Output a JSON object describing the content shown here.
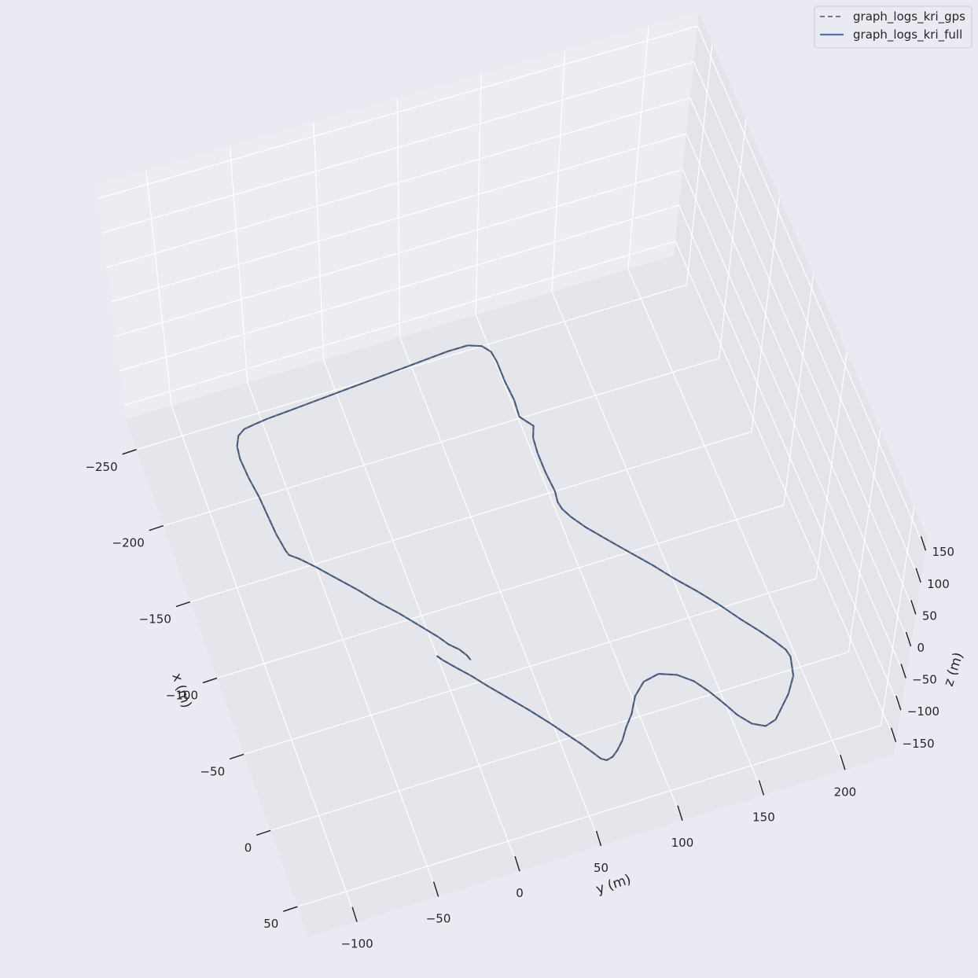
{
  "chart_data": {
    "type": "line",
    "projection": "3d",
    "grid": true,
    "legend_position": "top-right",
    "xlabel": "x (m)",
    "ylabel": "y (m)",
    "zlabel": "z (m)",
    "x_ticks": [
      "−250",
      "−200",
      "−150",
      "−100",
      "−50",
      "0",
      "50"
    ],
    "y_ticks": [
      "−100",
      "−50",
      "0",
      "50",
      "100",
      "150",
      "200"
    ],
    "z_ticks": [
      "−150",
      "−100",
      "−50",
      "0",
      "50",
      "100",
      "150"
    ],
    "xlim": [
      -270,
      70
    ],
    "ylim": [
      -130,
      230
    ],
    "zlim": [
      -170,
      170
    ],
    "colors": {
      "gps": "#555555",
      "full": "#4c72b0",
      "background": "#eaeaf2",
      "pane": "#e5e5ec",
      "grid": "#ffffff"
    },
    "series": [
      {
        "name": "graph_logs_kri_gps",
        "style": "dashed",
        "path": [
          [
            -73,
            0
          ],
          [
            -70,
            2
          ],
          [
            -63,
            8
          ],
          [
            -55,
            15
          ],
          [
            -46,
            22
          ],
          [
            -35,
            31
          ],
          [
            -24,
            40
          ],
          [
            -12,
            49
          ],
          [
            -2,
            56
          ],
          [
            5,
            61
          ],
          [
            13,
            66
          ],
          [
            18,
            69
          ],
          [
            20,
            72
          ],
          [
            19,
            76
          ],
          [
            16,
            80
          ],
          [
            11,
            85
          ],
          [
            4,
            90
          ],
          [
            -3,
            96
          ],
          [
            -13,
            102
          ],
          [
            -20,
            110
          ],
          [
            -22,
            120
          ],
          [
            -18,
            130
          ],
          [
            -11,
            138
          ],
          [
            -2,
            144
          ],
          [
            7,
            149
          ],
          [
            17,
            154
          ],
          [
            25,
            160
          ],
          [
            29,
            167
          ],
          [
            27,
            174
          ],
          [
            21,
            180
          ],
          [
            14,
            187
          ],
          [
            4,
            194
          ],
          [
            -8,
            197
          ],
          [
            -13,
            196
          ],
          [
            -20,
            192
          ],
          [
            -29,
            186
          ],
          [
            -40,
            178
          ],
          [
            -52,
            170
          ],
          [
            -64,
            161
          ],
          [
            -76,
            151
          ],
          [
            -88,
            142
          ],
          [
            -100,
            132
          ],
          [
            -112,
            122
          ],
          [
            -123,
            113
          ],
          [
            -132,
            107
          ],
          [
            -138,
            104
          ],
          [
            -143,
            103
          ],
          [
            -150,
            104
          ],
          [
            -163,
            103
          ],
          [
            -176,
            103
          ],
          [
            -186,
            104
          ],
          [
            -193,
            107
          ],
          [
            -197,
            104
          ],
          [
            -201,
            101
          ],
          [
            -212,
            102
          ],
          [
            -225,
            101
          ],
          [
            -238,
            101
          ],
          [
            -245,
            100
          ],
          [
            -250,
            96
          ],
          [
            -253,
            88
          ],
          [
            -253,
            75
          ],
          [
            -252,
            60
          ],
          [
            -251,
            45
          ],
          [
            -250,
            30
          ],
          [
            -249,
            15
          ],
          [
            -248,
            0
          ],
          [
            -247,
            -15
          ],
          [
            -246,
            -30
          ],
          [
            -245,
            -46
          ],
          [
            -244,
            -55
          ],
          [
            -243,
            -62
          ],
          [
            -240,
            -67
          ],
          [
            -234,
            -70
          ],
          [
            -226,
            -71
          ],
          [
            -213,
            -70
          ],
          [
            -200,
            -68
          ],
          [
            -187,
            -67
          ],
          [
            -175,
            -66
          ],
          [
            -163,
            -64
          ],
          [
            -160,
            -63
          ],
          [
            -156,
            -58
          ],
          [
            -148,
            -50
          ],
          [
            -138,
            -41
          ],
          [
            -127,
            -31
          ],
          [
            -116,
            -22
          ],
          [
            -105,
            -12
          ],
          [
            -94,
            -3
          ],
          [
            -84,
            5
          ],
          [
            -78,
            9
          ],
          [
            -73,
            14
          ],
          [
            -68,
            17
          ],
          [
            -65,
            18
          ]
        ]
      },
      {
        "name": "graph_logs_kri_full",
        "style": "solid",
        "path": [
          [
            -73,
            0
          ],
          [
            -70,
            2
          ],
          [
            -63,
            8
          ],
          [
            -55,
            15
          ],
          [
            -46,
            22
          ],
          [
            -35,
            31
          ],
          [
            -24,
            40
          ],
          [
            -12,
            49
          ],
          [
            -2,
            56
          ],
          [
            5,
            61
          ],
          [
            13,
            66
          ],
          [
            18,
            69
          ],
          [
            20,
            72
          ],
          [
            19,
            76
          ],
          [
            16,
            80
          ],
          [
            11,
            85
          ],
          [
            4,
            90
          ],
          [
            -3,
            96
          ],
          [
            -13,
            102
          ],
          [
            -20,
            110
          ],
          [
            -22,
            120
          ],
          [
            -18,
            130
          ],
          [
            -11,
            138
          ],
          [
            -2,
            144
          ],
          [
            7,
            149
          ],
          [
            17,
            154
          ],
          [
            25,
            160
          ],
          [
            29,
            167
          ],
          [
            27,
            174
          ],
          [
            21,
            180
          ],
          [
            14,
            187
          ],
          [
            4,
            194
          ],
          [
            -8,
            197
          ],
          [
            -13,
            196
          ],
          [
            -20,
            192
          ],
          [
            -29,
            186
          ],
          [
            -40,
            178
          ],
          [
            -52,
            170
          ],
          [
            -64,
            161
          ],
          [
            -76,
            151
          ],
          [
            -88,
            142
          ],
          [
            -100,
            132
          ],
          [
            -112,
            122
          ],
          [
            -123,
            113
          ],
          [
            -132,
            107
          ],
          [
            -138,
            104
          ],
          [
            -143,
            103
          ],
          [
            -150,
            104
          ],
          [
            -163,
            103
          ],
          [
            -176,
            103
          ],
          [
            -186,
            104
          ],
          [
            -193,
            107
          ],
          [
            -197,
            104
          ],
          [
            -201,
            101
          ],
          [
            -212,
            102
          ],
          [
            -225,
            101
          ],
          [
            -238,
            101
          ],
          [
            -245,
            100
          ],
          [
            -250,
            96
          ],
          [
            -253,
            88
          ],
          [
            -253,
            75
          ],
          [
            -252,
            60
          ],
          [
            -251,
            45
          ],
          [
            -250,
            30
          ],
          [
            -249,
            15
          ],
          [
            -248,
            0
          ],
          [
            -247,
            -15
          ],
          [
            -246,
            -30
          ],
          [
            -245,
            -46
          ],
          [
            -244,
            -55
          ],
          [
            -243,
            -62
          ],
          [
            -240,
            -67
          ],
          [
            -234,
            -70
          ],
          [
            -226,
            -71
          ],
          [
            -213,
            -70
          ],
          [
            -200,
            -68
          ],
          [
            -187,
            -67
          ],
          [
            -175,
            -66
          ],
          [
            -163,
            -64
          ],
          [
            -160,
            -63
          ],
          [
            -156,
            -58
          ],
          [
            -148,
            -50
          ],
          [
            -138,
            -41
          ],
          [
            -127,
            -31
          ],
          [
            -116,
            -22
          ],
          [
            -105,
            -12
          ],
          [
            -94,
            -3
          ],
          [
            -84,
            5
          ],
          [
            -78,
            9
          ],
          [
            -73,
            14
          ],
          [
            -68,
            17
          ],
          [
            -65,
            18
          ]
        ]
      }
    ]
  }
}
